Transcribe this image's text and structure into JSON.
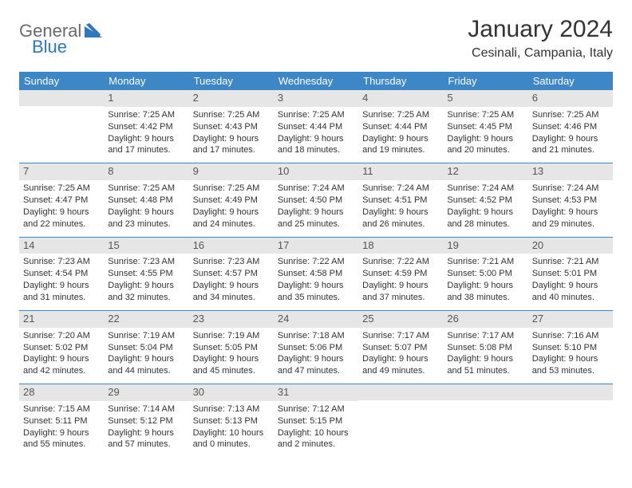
{
  "logo": {
    "text1": "General",
    "text2": "Blue"
  },
  "colors": {
    "headerBg": "#3d87c7",
    "headerText": "#ffffff",
    "dateBarBg": "#e6e6e6",
    "dateBarText": "#555555",
    "rowDivider": "#3d87c7",
    "logoGray": "#6a6a6a",
    "logoBlue": "#2f78bd"
  },
  "title": "January 2024",
  "location": "Cesinali, Campania, Italy",
  "dayNames": [
    "Sunday",
    "Monday",
    "Tuesday",
    "Wednesday",
    "Thursday",
    "Friday",
    "Saturday"
  ],
  "weeks": [
    [
      {
        "date": "",
        "lines": []
      },
      {
        "date": "1",
        "lines": [
          "Sunrise: 7:25 AM",
          "Sunset: 4:42 PM",
          "Daylight: 9 hours and 17 minutes."
        ]
      },
      {
        "date": "2",
        "lines": [
          "Sunrise: 7:25 AM",
          "Sunset: 4:43 PM",
          "Daylight: 9 hours and 17 minutes."
        ]
      },
      {
        "date": "3",
        "lines": [
          "Sunrise: 7:25 AM",
          "Sunset: 4:44 PM",
          "Daylight: 9 hours and 18 minutes."
        ]
      },
      {
        "date": "4",
        "lines": [
          "Sunrise: 7:25 AM",
          "Sunset: 4:44 PM",
          "Daylight: 9 hours and 19 minutes."
        ]
      },
      {
        "date": "5",
        "lines": [
          "Sunrise: 7:25 AM",
          "Sunset: 4:45 PM",
          "Daylight: 9 hours and 20 minutes."
        ]
      },
      {
        "date": "6",
        "lines": [
          "Sunrise: 7:25 AM",
          "Sunset: 4:46 PM",
          "Daylight: 9 hours and 21 minutes."
        ]
      }
    ],
    [
      {
        "date": "7",
        "lines": [
          "Sunrise: 7:25 AM",
          "Sunset: 4:47 PM",
          "Daylight: 9 hours and 22 minutes."
        ]
      },
      {
        "date": "8",
        "lines": [
          "Sunrise: 7:25 AM",
          "Sunset: 4:48 PM",
          "Daylight: 9 hours and 23 minutes."
        ]
      },
      {
        "date": "9",
        "lines": [
          "Sunrise: 7:25 AM",
          "Sunset: 4:49 PM",
          "Daylight: 9 hours and 24 minutes."
        ]
      },
      {
        "date": "10",
        "lines": [
          "Sunrise: 7:24 AM",
          "Sunset: 4:50 PM",
          "Daylight: 9 hours and 25 minutes."
        ]
      },
      {
        "date": "11",
        "lines": [
          "Sunrise: 7:24 AM",
          "Sunset: 4:51 PM",
          "Daylight: 9 hours and 26 minutes."
        ]
      },
      {
        "date": "12",
        "lines": [
          "Sunrise: 7:24 AM",
          "Sunset: 4:52 PM",
          "Daylight: 9 hours and 28 minutes."
        ]
      },
      {
        "date": "13",
        "lines": [
          "Sunrise: 7:24 AM",
          "Sunset: 4:53 PM",
          "Daylight: 9 hours and 29 minutes."
        ]
      }
    ],
    [
      {
        "date": "14",
        "lines": [
          "Sunrise: 7:23 AM",
          "Sunset: 4:54 PM",
          "Daylight: 9 hours and 31 minutes."
        ]
      },
      {
        "date": "15",
        "lines": [
          "Sunrise: 7:23 AM",
          "Sunset: 4:55 PM",
          "Daylight: 9 hours and 32 minutes."
        ]
      },
      {
        "date": "16",
        "lines": [
          "Sunrise: 7:23 AM",
          "Sunset: 4:57 PM",
          "Daylight: 9 hours and 34 minutes."
        ]
      },
      {
        "date": "17",
        "lines": [
          "Sunrise: 7:22 AM",
          "Sunset: 4:58 PM",
          "Daylight: 9 hours and 35 minutes."
        ]
      },
      {
        "date": "18",
        "lines": [
          "Sunrise: 7:22 AM",
          "Sunset: 4:59 PM",
          "Daylight: 9 hours and 37 minutes."
        ]
      },
      {
        "date": "19",
        "lines": [
          "Sunrise: 7:21 AM",
          "Sunset: 5:00 PM",
          "Daylight: 9 hours and 38 minutes."
        ]
      },
      {
        "date": "20",
        "lines": [
          "Sunrise: 7:21 AM",
          "Sunset: 5:01 PM",
          "Daylight: 9 hours and 40 minutes."
        ]
      }
    ],
    [
      {
        "date": "21",
        "lines": [
          "Sunrise: 7:20 AM",
          "Sunset: 5:02 PM",
          "Daylight: 9 hours and 42 minutes."
        ]
      },
      {
        "date": "22",
        "lines": [
          "Sunrise: 7:19 AM",
          "Sunset: 5:04 PM",
          "Daylight: 9 hours and 44 minutes."
        ]
      },
      {
        "date": "23",
        "lines": [
          "Sunrise: 7:19 AM",
          "Sunset: 5:05 PM",
          "Daylight: 9 hours and 45 minutes."
        ]
      },
      {
        "date": "24",
        "lines": [
          "Sunrise: 7:18 AM",
          "Sunset: 5:06 PM",
          "Daylight: 9 hours and 47 minutes."
        ]
      },
      {
        "date": "25",
        "lines": [
          "Sunrise: 7:17 AM",
          "Sunset: 5:07 PM",
          "Daylight: 9 hours and 49 minutes."
        ]
      },
      {
        "date": "26",
        "lines": [
          "Sunrise: 7:17 AM",
          "Sunset: 5:08 PM",
          "Daylight: 9 hours and 51 minutes."
        ]
      },
      {
        "date": "27",
        "lines": [
          "Sunrise: 7:16 AM",
          "Sunset: 5:10 PM",
          "Daylight: 9 hours and 53 minutes."
        ]
      }
    ],
    [
      {
        "date": "28",
        "lines": [
          "Sunrise: 7:15 AM",
          "Sunset: 5:11 PM",
          "Daylight: 9 hours and 55 minutes."
        ]
      },
      {
        "date": "29",
        "lines": [
          "Sunrise: 7:14 AM",
          "Sunset: 5:12 PM",
          "Daylight: 9 hours and 57 minutes."
        ]
      },
      {
        "date": "30",
        "lines": [
          "Sunrise: 7:13 AM",
          "Sunset: 5:13 PM",
          "Daylight: 10 hours and 0 minutes."
        ]
      },
      {
        "date": "31",
        "lines": [
          "Sunrise: 7:12 AM",
          "Sunset: 5:15 PM",
          "Daylight: 10 hours and 2 minutes."
        ]
      },
      {
        "date": "",
        "lines": []
      },
      {
        "date": "",
        "lines": []
      },
      {
        "date": "",
        "lines": []
      }
    ]
  ]
}
